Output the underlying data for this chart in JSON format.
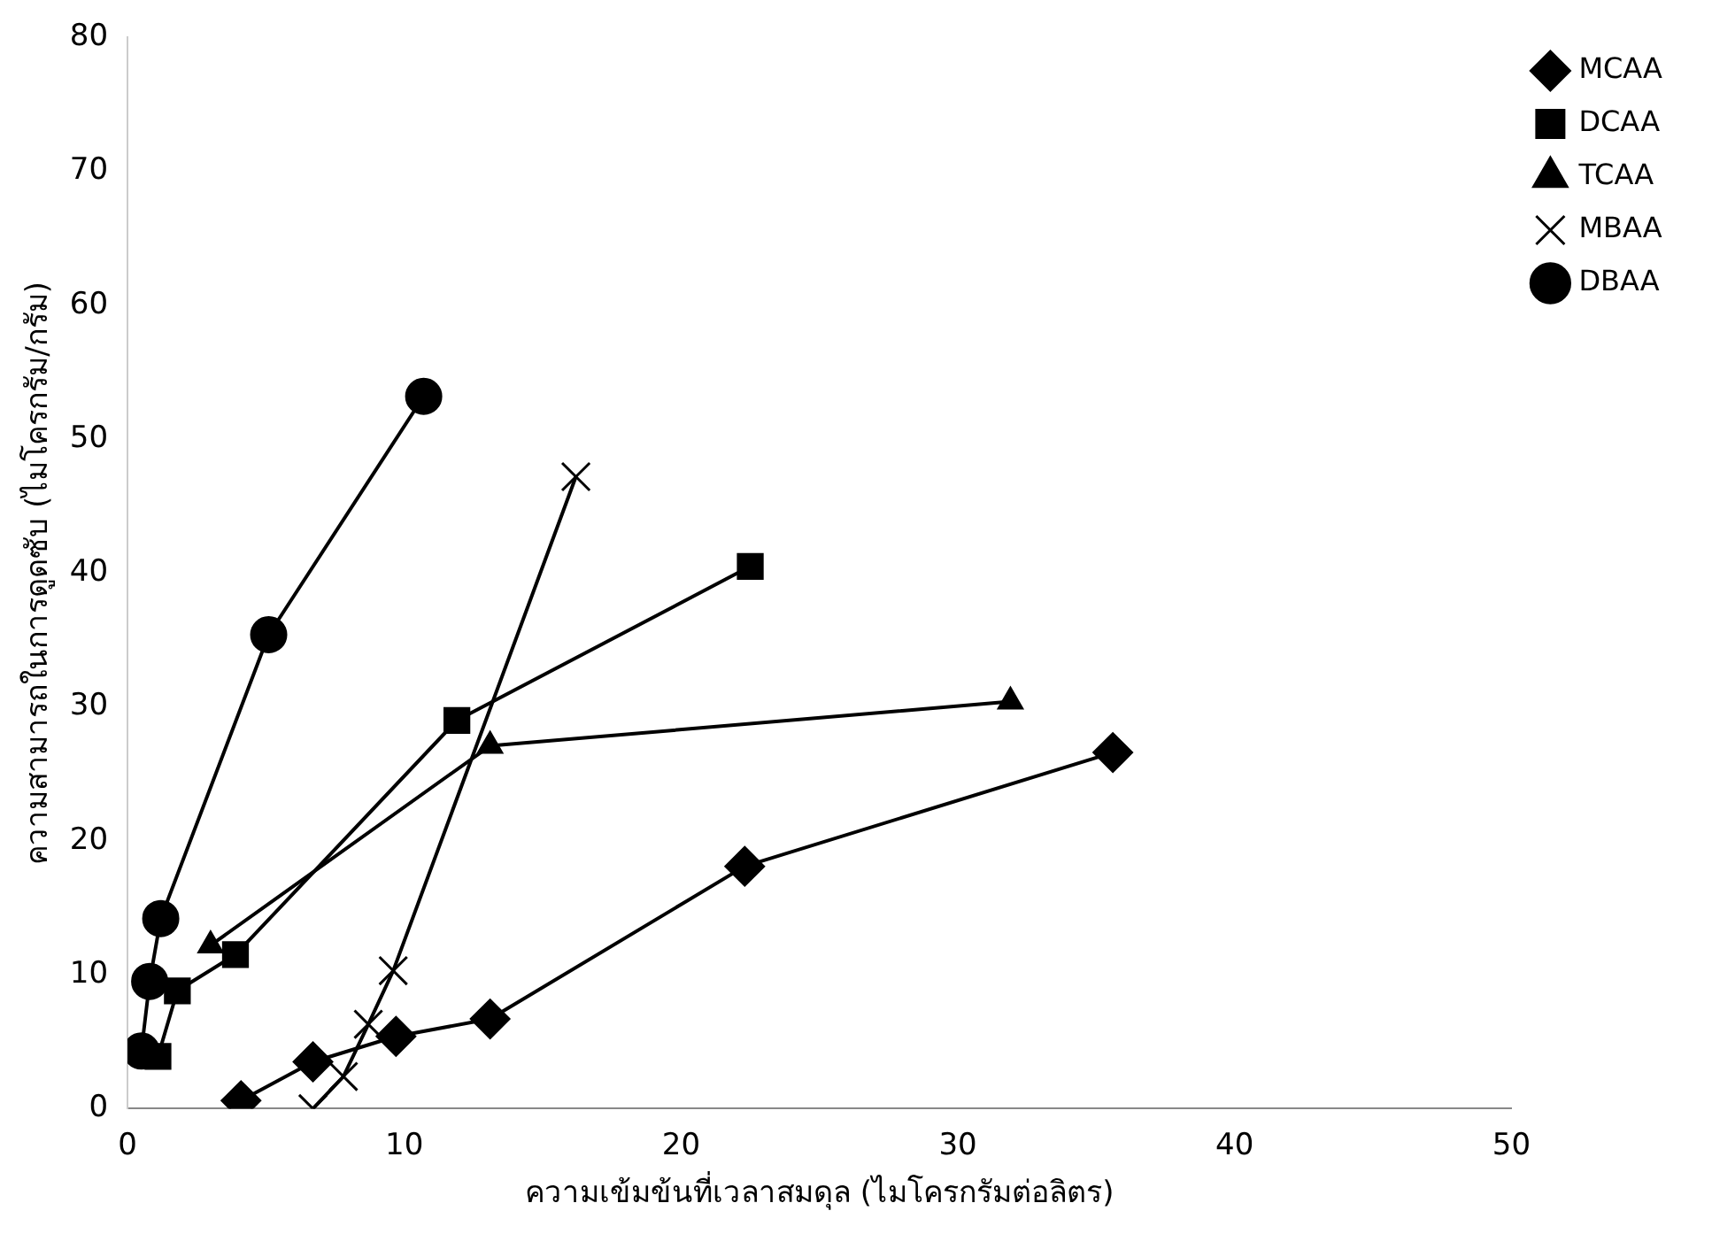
{
  "chart_data": {
    "type": "line",
    "xlabel": "ความเข้มข้นที่เวลาสมดุล (ไมโครกรัมต่อลิตร)",
    "ylabel": "ความสามารถในการดูดซับ (ไมโครกรัม/กรัม)",
    "xlim": [
      0,
      50
    ],
    "xticks": [
      0,
      10,
      20,
      30,
      40,
      50
    ],
    "ylim": [
      0,
      80
    ],
    "yticks": [
      0,
      10,
      20,
      30,
      40,
      50,
      60,
      70,
      80
    ],
    "grid": false,
    "legend": "top right",
    "line_style": "solid",
    "series": [
      {
        "name": "MCAA",
        "color": "#000000",
        "marker": "diamond",
        "x": [
          4.1,
          6.7,
          9.7,
          13.1,
          22.3,
          35.6
        ],
        "values": [
          0.6,
          3.5,
          5.4,
          6.7,
          18.1,
          26.6
        ]
      },
      {
        "name": "DCAA",
        "color": "#000000",
        "marker": "square",
        "x": [
          1.1,
          1.8,
          3.9,
          11.9,
          22.5
        ],
        "values": [
          3.9,
          8.8,
          11.5,
          29.0,
          40.5
        ]
      },
      {
        "name": "TCAA",
        "color": "#000000",
        "marker": "triangle",
        "x": [
          3.0,
          13.1,
          31.9
        ],
        "values": [
          12.2,
          27.1,
          30.4
        ]
      },
      {
        "name": "MBAA",
        "color": "#000000",
        "marker": "cross",
        "x": [
          6.7,
          7.8,
          8.7,
          9.6,
          16.2
        ],
        "values": [
          0,
          2.4,
          6.3,
          10.3,
          47.2
        ]
      },
      {
        "name": "DBAA",
        "color": "#000000",
        "marker": "circle",
        "x": [
          0.5,
          0.8,
          1.2,
          5.1,
          10.7
        ],
        "values": [
          4.3,
          9.5,
          14.2,
          35.4,
          53.2
        ]
      }
    ]
  }
}
